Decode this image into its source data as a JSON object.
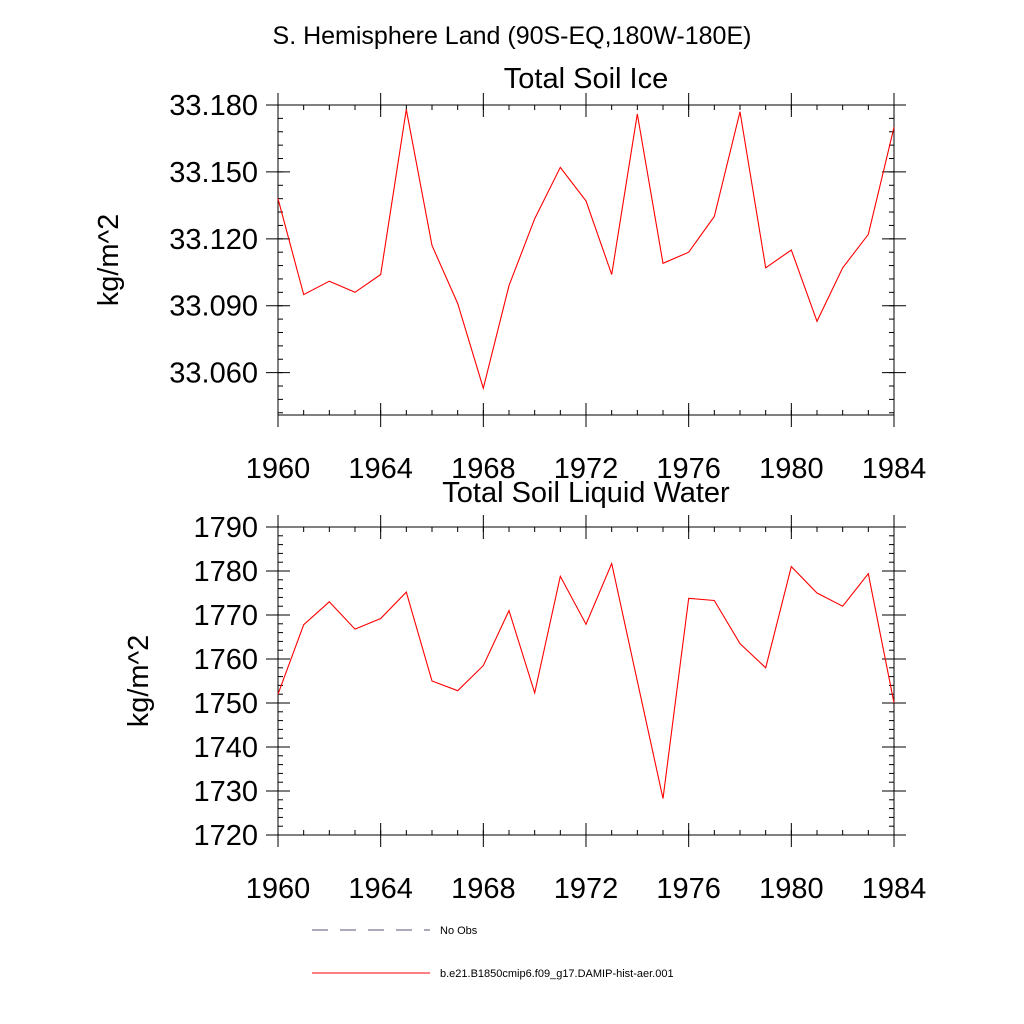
{
  "figure_title": "S. Hemisphere Land (90S-EQ,180W-180E)",
  "colors": {
    "series": "#ff0000",
    "no_obs": "#555577",
    "axes": "#000000"
  },
  "legend": {
    "entries": [
      {
        "label": "No Obs",
        "style": "dashed"
      },
      {
        "label": "b.e21.B1850cmip6.f09_g17.DAMIP-hist-aer.001",
        "style": "solid"
      }
    ]
  },
  "chart_data": [
    {
      "type": "line",
      "title": "Total Soil Ice",
      "xlabel": "",
      "ylabel": "kg/m^2",
      "xlim": [
        1960,
        1984
      ],
      "ylim": [
        33.041,
        33.18
      ],
      "x_ticks": [
        1960,
        1964,
        1968,
        1972,
        1976,
        1980,
        1984
      ],
      "y_ticks": [
        "33.060",
        "33.090",
        "33.120",
        "33.150",
        "33.180"
      ],
      "y_tick_values": [
        33.06,
        33.09,
        33.12,
        33.15,
        33.18
      ],
      "y_minor_step": 0.006,
      "x_minor_step": 1,
      "grid": false,
      "series": [
        {
          "x": [
            1960,
            1961,
            1962,
            1963,
            1964,
            1965,
            1966,
            1967,
            1968,
            1969,
            1970,
            1971,
            1972,
            1973,
            1974,
            1975,
            1976,
            1977,
            1978,
            1979,
            1980,
            1981,
            1982,
            1983,
            1984
          ],
          "values": [
            33.138,
            33.095,
            33.101,
            33.096,
            33.104,
            33.178,
            33.117,
            33.091,
            33.053,
            33.099,
            33.129,
            33.152,
            33.137,
            33.104,
            33.176,
            33.109,
            33.114,
            33.13,
            33.177,
            33.107,
            33.115,
            33.083,
            33.107,
            33.122,
            33.17
          ]
        }
      ]
    },
    {
      "type": "line",
      "title": "Total Soil Liquid Water",
      "xlabel": "",
      "ylabel": "kg/m^2",
      "xlim": [
        1960,
        1984
      ],
      "ylim": [
        1720,
        1790
      ],
      "x_ticks": [
        1960,
        1964,
        1968,
        1972,
        1976,
        1980,
        1984
      ],
      "y_ticks": [
        "1720",
        "1730",
        "1740",
        "1750",
        "1760",
        "1770",
        "1780",
        "1790"
      ],
      "y_tick_values": [
        1720,
        1730,
        1740,
        1750,
        1760,
        1770,
        1780,
        1790
      ],
      "y_minor_step": 2,
      "x_minor_step": 1,
      "grid": false,
      "series": [
        {
          "x": [
            1960,
            1961,
            1962,
            1963,
            1964,
            1965,
            1966,
            1967,
            1968,
            1969,
            1970,
            1971,
            1972,
            1973,
            1974,
            1975,
            1976,
            1977,
            1978,
            1979,
            1980,
            1981,
            1982,
            1983,
            1984
          ],
          "values": [
            1752.0,
            1767.8,
            1773.0,
            1766.8,
            1769.2,
            1775.2,
            1755.0,
            1752.8,
            1758.5,
            1771.0,
            1752.3,
            1778.8,
            1767.9,
            1781.7,
            1755.0,
            1728.3,
            1773.8,
            1773.3,
            1763.5,
            1758.0,
            1781.0,
            1775.0,
            1772.0,
            1779.4,
            1750.0
          ]
        }
      ]
    }
  ]
}
